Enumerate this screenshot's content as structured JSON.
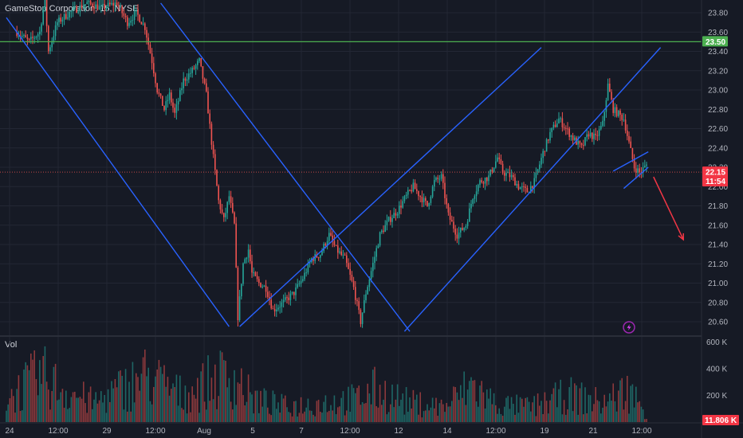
{
  "header": {
    "title": "GameStop Corporation, 15, NYSE"
  },
  "volume_pane": {
    "label": "Vol"
  },
  "colors": {
    "background": "#161a25",
    "grid": "#232734",
    "up": "#26a69a",
    "down": "#ef5350",
    "trendline": "#2962ff",
    "resistance": "#4caf50",
    "arrow": "#f23645",
    "price_tag": "#f23645",
    "resistance_tag": "#4caf50"
  },
  "chart_data": {
    "type": "candlestick",
    "symbol": "GameStop Corporation",
    "interval": "15",
    "exchange": "NYSE",
    "price_axis": {
      "ticks": [
        "23.80",
        "23.60",
        "23.40",
        "23.20",
        "23.00",
        "22.80",
        "22.60",
        "22.40",
        "22.20",
        "22.00",
        "21.80",
        "21.60",
        "21.40",
        "21.20",
        "21.00",
        "20.80",
        "20.60"
      ],
      "range": [
        20.5,
        23.9
      ]
    },
    "volume_axis": {
      "ticks": [
        "600 K",
        "400 K",
        "200 K"
      ],
      "range": [
        0,
        620000
      ]
    },
    "time_axis": {
      "ticks": [
        "24",
        "12:00",
        "29",
        "12:00",
        "Aug",
        "5",
        "7",
        "12:00",
        "12",
        "14",
        "12:00",
        "19",
        "21",
        "12:00"
      ]
    },
    "current_price": {
      "value": "22.15",
      "countdown": "11:54"
    },
    "resistance_level": {
      "value": "23.50"
    },
    "last_volume": "11.806 K",
    "trendlines": [
      {
        "name": "descending-channel-left",
        "points": [
          [
            0,
            23.75
          ],
          [
            12.7,
            20.55
          ]
        ]
      },
      {
        "name": "descending-channel-right",
        "points": [
          [
            8.8,
            23.9
          ],
          [
            23.0,
            20.5
          ]
        ]
      },
      {
        "name": "ascending-channel-upper",
        "points": [
          [
            13.3,
            20.55
          ],
          [
            30.5,
            23.44
          ]
        ]
      },
      {
        "name": "ascending-channel-lower",
        "points": [
          [
            22.7,
            20.5
          ],
          [
            37.3,
            23.44
          ]
        ]
      },
      {
        "name": "flag-upper",
        "points": [
          [
            34.6,
            22.16
          ],
          [
            36.6,
            22.36
          ]
        ]
      },
      {
        "name": "flag-lower",
        "points": [
          [
            35.2,
            21.98
          ],
          [
            36.6,
            22.2
          ]
        ]
      }
    ],
    "arrow": {
      "from": [
        36.9,
        22.1
      ],
      "to": [
        38.6,
        21.45
      ]
    },
    "price_path": [
      [
        0.6,
        23.6
      ],
      [
        1.3,
        23.5
      ],
      [
        1.9,
        23.6
      ],
      [
        2.2,
        23.95
      ],
      [
        2.4,
        23.4
      ],
      [
        2.9,
        23.7
      ],
      [
        3.6,
        23.8
      ],
      [
        4.6,
        23.9
      ],
      [
        5.4,
        23.85
      ],
      [
        6.3,
        23.9
      ],
      [
        6.9,
        23.7
      ],
      [
        7.4,
        23.8
      ],
      [
        7.9,
        23.65
      ],
      [
        8.3,
        23.3
      ],
      [
        8.6,
        23.0
      ],
      [
        9.0,
        22.8
      ],
      [
        9.3,
        22.95
      ],
      [
        9.6,
        22.75
      ],
      [
        10.1,
        23.1
      ],
      [
        10.6,
        23.2
      ],
      [
        11.0,
        23.3
      ],
      [
        11.4,
        22.95
      ],
      [
        11.8,
        22.3
      ],
      [
        12.1,
        21.85
      ],
      [
        12.4,
        21.65
      ],
      [
        12.7,
        21.9
      ],
      [
        13.0,
        21.6
      ],
      [
        13.2,
        20.65
      ],
      [
        13.5,
        21.2
      ],
      [
        13.8,
        21.35
      ],
      [
        14.0,
        21.1
      ],
      [
        14.4,
        21.0
      ],
      [
        14.8,
        20.95
      ],
      [
        15.2,
        20.72
      ],
      [
        15.8,
        20.8
      ],
      [
        16.4,
        20.9
      ],
      [
        16.9,
        21.05
      ],
      [
        17.4,
        21.25
      ],
      [
        17.9,
        21.3
      ],
      [
        18.4,
        21.5
      ],
      [
        18.8,
        21.35
      ],
      [
        19.3,
        21.25
      ],
      [
        19.8,
        20.95
      ],
      [
        20.2,
        20.6
      ],
      [
        20.5,
        20.9
      ],
      [
        20.9,
        21.2
      ],
      [
        21.3,
        21.5
      ],
      [
        21.8,
        21.65
      ],
      [
        22.3,
        21.75
      ],
      [
        22.8,
        21.9
      ],
      [
        23.2,
        22.0
      ],
      [
        23.6,
        21.9
      ],
      [
        24.0,
        21.8
      ],
      [
        24.4,
        22.05
      ],
      [
        24.8,
        22.1
      ],
      [
        25.2,
        21.7
      ],
      [
        25.7,
        21.5
      ],
      [
        26.2,
        21.6
      ],
      [
        26.6,
        21.9
      ],
      [
        27.0,
        22.05
      ],
      [
        27.5,
        22.1
      ],
      [
        28.0,
        22.3
      ],
      [
        28.3,
        22.15
      ],
      [
        28.8,
        22.1
      ],
      [
        29.2,
        22.0
      ],
      [
        29.7,
        21.95
      ],
      [
        30.1,
        22.05
      ],
      [
        30.6,
        22.35
      ],
      [
        31.0,
        22.55
      ],
      [
        31.5,
        22.7
      ],
      [
        31.9,
        22.6
      ],
      [
        32.3,
        22.5
      ],
      [
        32.8,
        22.4
      ],
      [
        33.2,
        22.55
      ],
      [
        33.6,
        22.5
      ],
      [
        34.0,
        22.65
      ],
      [
        34.3,
        23.05
      ],
      [
        34.6,
        22.8
      ],
      [
        34.9,
        22.75
      ],
      [
        35.2,
        22.7
      ],
      [
        35.5,
        22.45
      ],
      [
        35.8,
        22.2
      ],
      [
        36.1,
        22.15
      ],
      [
        36.4,
        22.2
      ],
      [
        36.6,
        22.25
      ]
    ],
    "volume_profile": [
      [
        0,
        300000
      ],
      [
        2,
        610000
      ],
      [
        3,
        450000
      ],
      [
        5,
        250000
      ],
      [
        8,
        600000
      ],
      [
        10,
        350000
      ],
      [
        12.5,
        600000
      ],
      [
        13.2,
        550000
      ],
      [
        14,
        300000
      ],
      [
        16,
        200000
      ],
      [
        18,
        250000
      ],
      [
        20,
        300000
      ],
      [
        21,
        420000
      ],
      [
        23,
        250000
      ],
      [
        25,
        200000
      ],
      [
        26.5,
        480000
      ],
      [
        28,
        220000
      ],
      [
        30,
        200000
      ],
      [
        32,
        350000
      ],
      [
        34,
        250000
      ],
      [
        35.5,
        420000
      ],
      [
        36.6,
        80000
      ]
    ]
  }
}
